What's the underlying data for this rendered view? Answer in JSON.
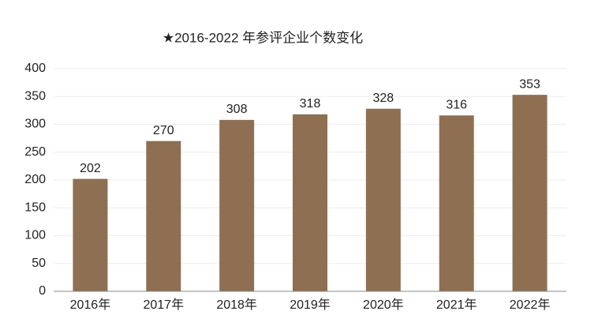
{
  "chart_data": {
    "type": "bar",
    "title": "★2016-2022 年参评企业个数变化",
    "categories": [
      "2016年",
      "2017年",
      "2018年",
      "2019年",
      "2020年",
      "2021年",
      "2022年"
    ],
    "values": [
      202,
      270,
      308,
      318,
      328,
      316,
      353
    ],
    "color": "#8e6f52",
    "ylim": [
      0,
      400
    ],
    "yticks": [
      0,
      50,
      100,
      150,
      200,
      250,
      300,
      350,
      400
    ],
    "grid": true
  }
}
